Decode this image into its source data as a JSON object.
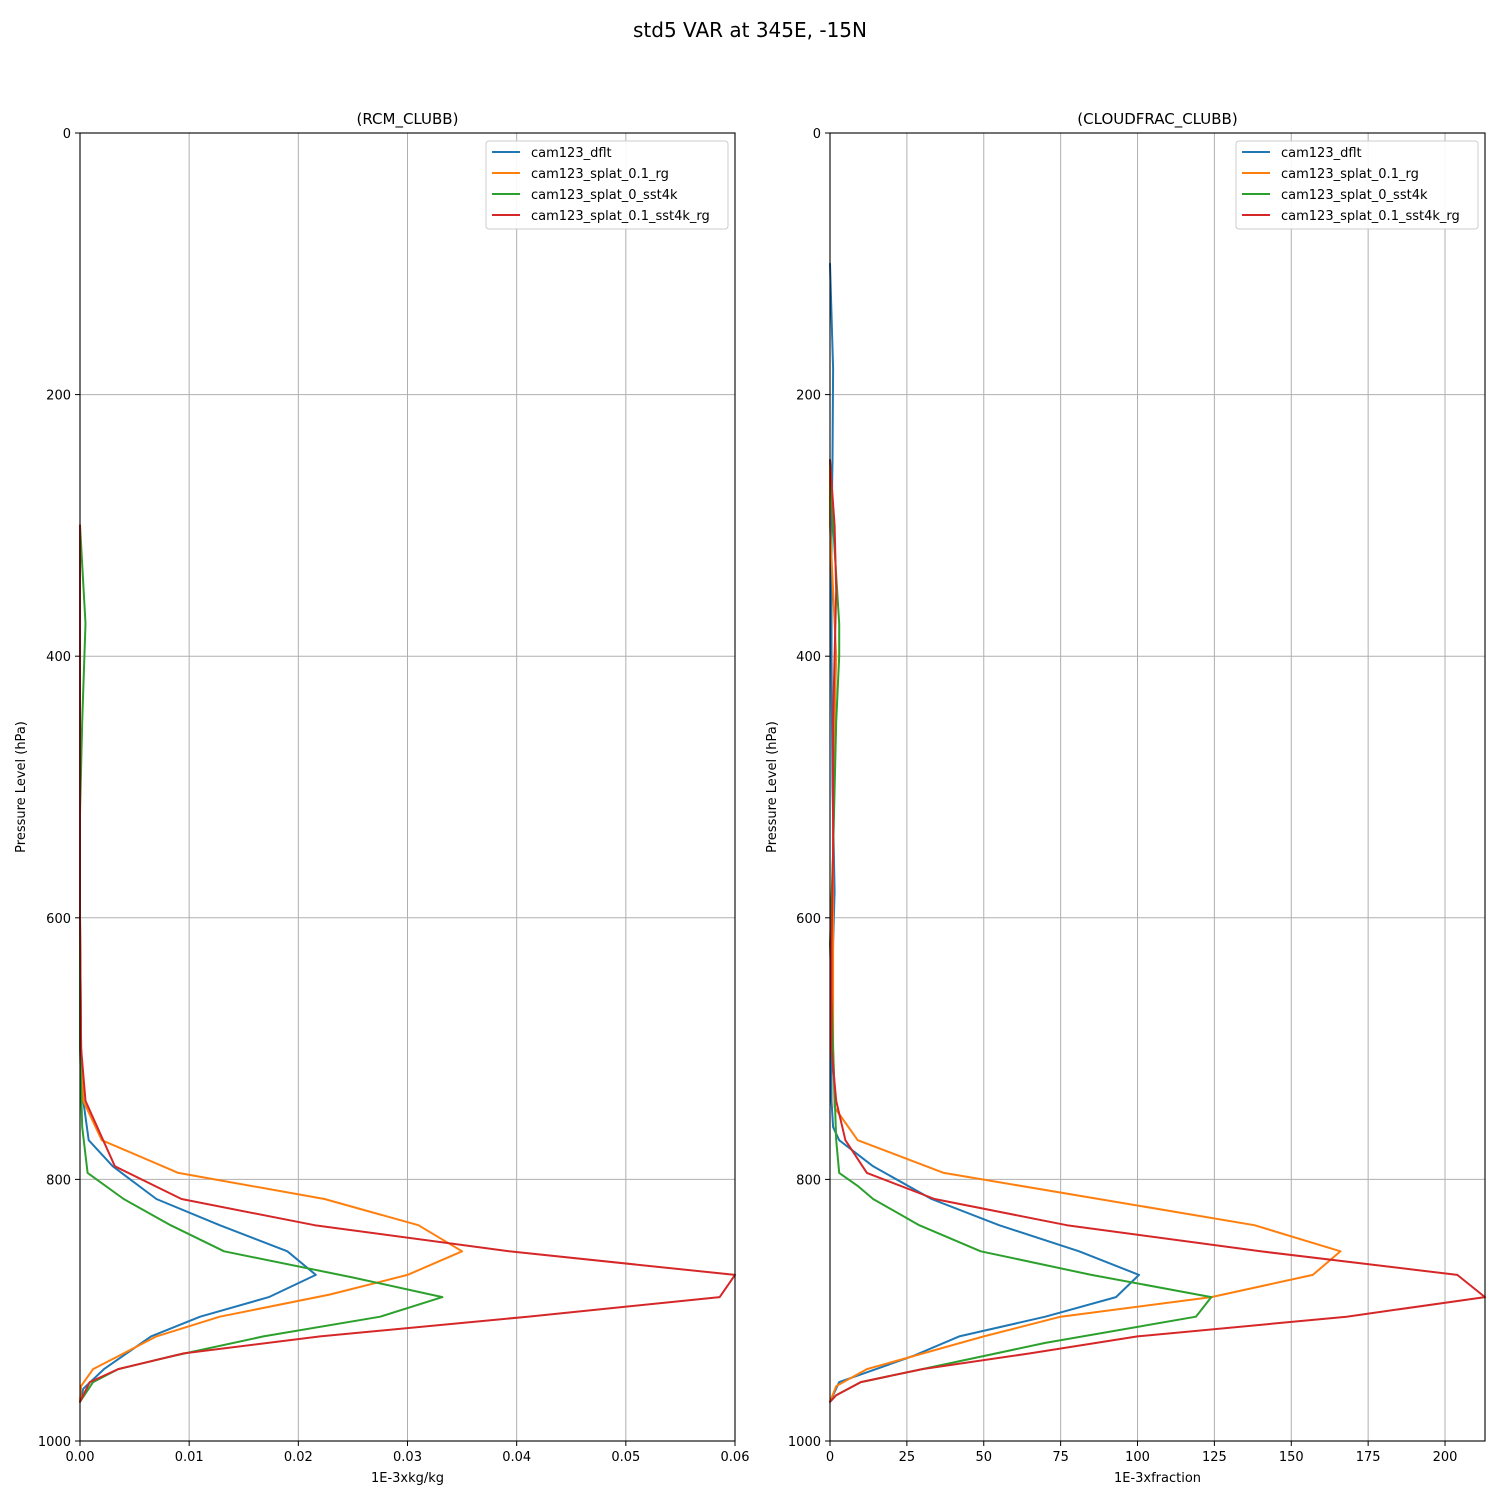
{
  "figure": {
    "title": "std5 VAR at 345E, -15N"
  },
  "legend": [
    "cam123_dflt",
    "cam123_splat_0.1_rg",
    "cam123_splat_0_sst4k",
    "cam123_splat_0.1_sst4k_rg"
  ],
  "colors": [
    "#1f77b4",
    "#ff7f0e",
    "#2ca02c",
    "#d62728"
  ],
  "chart_data": [
    {
      "type": "line",
      "title": "(RCM_CLUBB)",
      "xlabel": "1E-3xkg/kg",
      "ylabel": "Pressure Level (hPa)",
      "xlim": [
        0,
        0.06
      ],
      "ylim": [
        1000,
        0
      ],
      "y_inverted": true,
      "xticks": [
        0,
        0.01,
        0.02,
        0.03,
        0.04,
        0.05,
        0.06
      ],
      "xtick_labels": [
        "0.00",
        "0.01",
        "0.02",
        "0.03",
        "0.04",
        "0.05",
        "0.06"
      ],
      "yticks": [
        0,
        200,
        400,
        600,
        800,
        1000
      ],
      "ytick_labels": [
        "0",
        "200",
        "400",
        "600",
        "800",
        "1000"
      ],
      "grid": true,
      "legend_position": "top-right",
      "series": [
        {
          "name": "cam123_dflt",
          "x": [
            0,
            0,
            0.0001,
            0.0003,
            0.0008,
            0.003,
            0.007,
            0.0128,
            0.019,
            0.0216,
            0.0173,
            0.011,
            0.0065,
            0.0022,
            0.0003,
            0
          ],
          "y": [
            300,
            600,
            700,
            740,
            770,
            790,
            815,
            835,
            855,
            873,
            890,
            905,
            920,
            945,
            960,
            970
          ]
        },
        {
          "name": "cam123_splat_0.1_rg",
          "x": [
            0,
            0,
            0.0001,
            0.0003,
            0.002,
            0.009,
            0.0224,
            0.031,
            0.035,
            0.03,
            0.0229,
            0.0128,
            0.007,
            0.0012,
            0.0001,
            0
          ],
          "y": [
            300,
            600,
            700,
            740,
            770,
            795,
            815,
            835,
            855,
            873,
            888,
            905,
            920,
            945,
            958,
            970
          ]
        },
        {
          "name": "cam123_splat_0_sst4k",
          "x": [
            0,
            0.0005,
            0.0004,
            0.0002,
            0,
            0,
            0,
            0.0002,
            0.0007,
            0.004,
            0.0083,
            0.0132,
            0.025,
            0.0332,
            0.0275,
            0.0168,
            0.0085,
            0.0035,
            0.0012,
            0
          ],
          "y": [
            300,
            375,
            400,
            450,
            520,
            600,
            700,
            760,
            795,
            815,
            835,
            855,
            875,
            890,
            905,
            920,
            935,
            945,
            955,
            970
          ]
        },
        {
          "name": "cam123_splat_0.1_sst4k_rg",
          "x": [
            0,
            0,
            0.0001,
            0.0005,
            0.0032,
            0.0093,
            0.0215,
            0.0393,
            0.06,
            0.0586,
            0.041,
            0.022,
            0.0095,
            0.0035,
            0.0009,
            0
          ],
          "y": [
            300,
            600,
            700,
            740,
            790,
            815,
            835,
            855,
            873,
            890,
            905,
            920,
            933,
            945,
            955,
            970
          ]
        }
      ]
    },
    {
      "type": "line",
      "title": "(CLOUDFRAC_CLUBB)",
      "xlabel": "1E-3xfraction",
      "ylabel": "Pressure Level (hPa)",
      "xlim": [
        0,
        213
      ],
      "ylim": [
        1000,
        0
      ],
      "y_inverted": true,
      "xticks": [
        0,
        25,
        50,
        75,
        100,
        125,
        150,
        175,
        200
      ],
      "xtick_labels": [
        "0",
        "25",
        "50",
        "75",
        "100",
        "125",
        "150",
        "175",
        "200"
      ],
      "yticks": [
        0,
        200,
        400,
        600,
        800,
        1000
      ],
      "ytick_labels": [
        "0",
        "200",
        "400",
        "600",
        "800",
        "1000"
      ],
      "grid": true,
      "legend_position": "top-right",
      "series": [
        {
          "name": "cam123_dflt",
          "x": [
            0,
            1,
            0.8,
            0.5,
            0.5,
            0.8,
            1.5,
            1,
            0.5,
            0.5,
            1,
            3,
            14,
            33,
            55,
            81,
            100.5,
            93,
            70,
            42,
            27,
            3,
            0
          ],
          "y": [
            100,
            180,
            250,
            300,
            400,
            500,
            580,
            620,
            700,
            740,
            760,
            770,
            790,
            815,
            835,
            855,
            873,
            890,
            905,
            920,
            935,
            955,
            970
          ]
        },
        {
          "name": "cam123_splat_0.1_rg",
          "x": [
            0,
            0,
            1,
            2,
            1.5,
            1,
            1,
            1.5,
            9,
            37,
            138,
            166,
            157,
            124,
            75,
            50,
            12,
            2,
            0
          ],
          "y": [
            250,
            300,
            350,
            400,
            450,
            550,
            700,
            745,
            770,
            795,
            835,
            855,
            873,
            890,
            905,
            920,
            945,
            958,
            970
          ]
        },
        {
          "name": "cam123_splat_0_sst4k",
          "x": [
            0,
            1,
            3,
            3,
            2,
            1,
            0,
            1,
            2,
            3,
            9,
            14,
            29,
            49,
            85,
            124,
            119,
            70,
            30,
            10,
            2,
            0
          ],
          "y": [
            250,
            300,
            375,
            400,
            450,
            550,
            620,
            700,
            770,
            795,
            805,
            815,
            835,
            855,
            873,
            890,
            905,
            925,
            945,
            955,
            965,
            970
          ]
        },
        {
          "name": "cam123_splat_0.1_sst4k_rg",
          "x": [
            0,
            1.5,
            2,
            1.5,
            1,
            1,
            0.5,
            0.5,
            2,
            5,
            12,
            34,
            77,
            140,
            204,
            213,
            168,
            100,
            65,
            30,
            10,
            2,
            0
          ],
          "y": [
            250,
            300,
            350,
            400,
            450,
            550,
            620,
            700,
            740,
            770,
            795,
            815,
            835,
            855,
            873,
            890,
            905,
            920,
            933,
            945,
            955,
            965,
            970
          ]
        }
      ]
    }
  ]
}
